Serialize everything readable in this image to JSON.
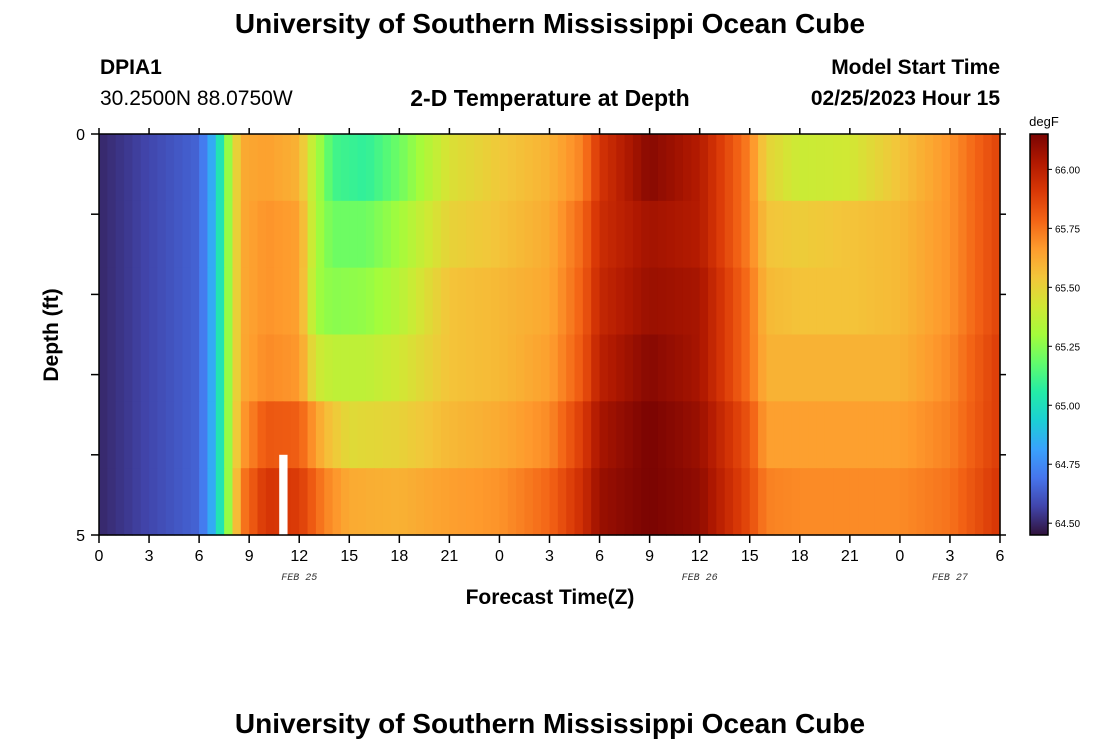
{
  "header": {
    "title": "University of Southern Mississippi Ocean Cube",
    "station_id": "DPIA1",
    "station_coords": "30.2500N  88.0750W",
    "model_start_label": "Model Start Time",
    "model_start_value": "02/25/2023 Hour 15"
  },
  "footer": {
    "title": "University of Southern Mississippi Ocean Cube"
  },
  "chart_data": {
    "type": "heatmap",
    "title": "2-D Temperature at Depth",
    "xlabel": "Forecast Time(Z)",
    "ylabel": "Depth (ft)",
    "x_tick_labels": [
      "0",
      "3",
      "6",
      "9",
      "12",
      "15",
      "18",
      "21",
      "0",
      "3",
      "6",
      "9",
      "12",
      "15",
      "18",
      "21",
      "0",
      "3",
      "6"
    ],
    "date_labels": [
      {
        "label": "FEB 25",
        "tick_index": 4
      },
      {
        "label": "FEB 26",
        "tick_index": 12
      },
      {
        "label": "FEB 27",
        "tick_index": 17
      }
    ],
    "y_tick_labels": [
      "0",
      "5"
    ],
    "ylim": [
      0,
      5
    ],
    "colorbar": {
      "unit": "degF",
      "tick_labels": [
        "66.00",
        "65.75",
        "65.50",
        "65.25",
        "65.00",
        "64.75",
        "64.50"
      ],
      "tick_values": [
        66.0,
        65.75,
        65.5,
        65.25,
        65.0,
        64.75,
        64.5
      ],
      "range": [
        64.45,
        66.15
      ],
      "colormap": [
        "#30123b",
        "#4145ab",
        "#4675ed",
        "#39a2fc",
        "#1bcfd4",
        "#24eca6",
        "#61fc6c",
        "#a4fc3b",
        "#d1e834",
        "#f3c63a",
        "#fe9b2d",
        "#f36315",
        "#d93806",
        "#b11901",
        "#7a0402"
      ]
    },
    "time_hours": [
      0,
      54
    ],
    "depth_layers": [
      {
        "name": "layer-1",
        "points": [
          [
            0,
            64.5
          ],
          [
            6,
            64.65
          ],
          [
            7,
            64.9
          ],
          [
            7.8,
            65.3
          ],
          [
            8.5,
            65.62
          ],
          [
            10,
            65.65
          ],
          [
            12,
            65.6
          ],
          [
            12.6,
            65.42
          ],
          [
            14,
            65.12
          ],
          [
            16,
            65.08
          ],
          [
            18,
            65.2
          ],
          [
            21,
            65.45
          ],
          [
            24,
            65.53
          ],
          [
            27,
            65.6
          ],
          [
            29,
            65.72
          ],
          [
            30,
            65.92
          ],
          [
            33,
            66.12
          ],
          [
            36,
            66.02
          ],
          [
            39,
            65.72
          ],
          [
            40,
            65.5
          ],
          [
            42,
            65.4
          ],
          [
            45,
            65.42
          ],
          [
            48,
            65.55
          ],
          [
            51,
            65.68
          ],
          [
            54,
            65.88
          ]
        ]
      },
      {
        "name": "layer-2",
        "points": [
          [
            0,
            64.5
          ],
          [
            6,
            64.65
          ],
          [
            7,
            64.9
          ],
          [
            7.8,
            65.3
          ],
          [
            8.5,
            65.62
          ],
          [
            10,
            65.68
          ],
          [
            12,
            65.65
          ],
          [
            13,
            65.32
          ],
          [
            14,
            65.2
          ],
          [
            16,
            65.2
          ],
          [
            18,
            65.3
          ],
          [
            21,
            65.5
          ],
          [
            24,
            65.55
          ],
          [
            27,
            65.62
          ],
          [
            29,
            65.78
          ],
          [
            30,
            65.95
          ],
          [
            33,
            66.06
          ],
          [
            36,
            66.02
          ],
          [
            39,
            65.72
          ],
          [
            40,
            65.55
          ],
          [
            42,
            65.52
          ],
          [
            45,
            65.55
          ],
          [
            48,
            65.58
          ],
          [
            51,
            65.68
          ],
          [
            54,
            65.88
          ]
        ]
      },
      {
        "name": "layer-3",
        "points": [
          [
            0,
            64.5
          ],
          [
            6,
            64.65
          ],
          [
            7,
            64.9
          ],
          [
            7.8,
            65.3
          ],
          [
            8.5,
            65.62
          ],
          [
            10,
            65.68
          ],
          [
            12,
            65.65
          ],
          [
            13,
            65.3
          ],
          [
            14,
            65.25
          ],
          [
            16,
            65.27
          ],
          [
            18,
            65.35
          ],
          [
            21,
            65.55
          ],
          [
            24,
            65.58
          ],
          [
            27,
            65.63
          ],
          [
            29,
            65.8
          ],
          [
            30,
            65.97
          ],
          [
            33,
            66.08
          ],
          [
            36,
            66.05
          ],
          [
            39,
            65.75
          ],
          [
            40,
            65.58
          ],
          [
            42,
            65.55
          ],
          [
            45,
            65.55
          ],
          [
            48,
            65.58
          ],
          [
            51,
            65.68
          ],
          [
            54,
            65.88
          ]
        ]
      },
      {
        "name": "layer-4",
        "points": [
          [
            0,
            64.5
          ],
          [
            6,
            64.65
          ],
          [
            7,
            64.9
          ],
          [
            7.8,
            65.3
          ],
          [
            8.5,
            65.62
          ],
          [
            10,
            65.7
          ],
          [
            12,
            65.67
          ],
          [
            13,
            65.42
          ],
          [
            14,
            65.37
          ],
          [
            16,
            65.37
          ],
          [
            18,
            65.42
          ],
          [
            21,
            65.55
          ],
          [
            24,
            65.58
          ],
          [
            27,
            65.65
          ],
          [
            29,
            65.82
          ],
          [
            30,
            66.0
          ],
          [
            33,
            66.12
          ],
          [
            36,
            66.05
          ],
          [
            39,
            65.75
          ],
          [
            40,
            65.6
          ],
          [
            42,
            65.6
          ],
          [
            45,
            65.6
          ],
          [
            48,
            65.6
          ],
          [
            51,
            65.7
          ],
          [
            54,
            65.9
          ]
        ]
      },
      {
        "name": "layer-5",
        "points": [
          [
            0,
            64.5
          ],
          [
            6,
            64.65
          ],
          [
            7,
            64.9
          ],
          [
            7.8,
            65.3
          ],
          [
            8.5,
            65.65
          ],
          [
            10,
            65.82
          ],
          [
            12,
            65.8
          ],
          [
            13.5,
            65.58
          ],
          [
            15,
            65.47
          ],
          [
            18,
            65.5
          ],
          [
            21,
            65.58
          ],
          [
            24,
            65.62
          ],
          [
            27,
            65.7
          ],
          [
            29,
            65.9
          ],
          [
            30,
            66.05
          ],
          [
            33,
            66.15
          ],
          [
            36,
            66.08
          ],
          [
            39,
            65.82
          ],
          [
            40,
            65.65
          ],
          [
            42,
            65.65
          ],
          [
            45,
            65.65
          ],
          [
            48,
            65.65
          ],
          [
            51,
            65.72
          ],
          [
            54,
            65.9
          ]
        ]
      },
      {
        "name": "layer-6",
        "points": [
          [
            0,
            64.5
          ],
          [
            6,
            64.65
          ],
          [
            7,
            64.9
          ],
          [
            7.8,
            65.3
          ],
          [
            8.5,
            65.72
          ],
          [
            10,
            65.92
          ],
          [
            12,
            65.9
          ],
          [
            13.5,
            65.72
          ],
          [
            15,
            65.62
          ],
          [
            18,
            65.6
          ],
          [
            21,
            65.65
          ],
          [
            24,
            65.68
          ],
          [
            27,
            65.78
          ],
          [
            29,
            65.95
          ],
          [
            30,
            66.08
          ],
          [
            33,
            66.15
          ],
          [
            36,
            66.1
          ],
          [
            39,
            65.85
          ],
          [
            40,
            65.72
          ],
          [
            42,
            65.7
          ],
          [
            45,
            65.7
          ],
          [
            48,
            65.7
          ],
          [
            51,
            65.75
          ],
          [
            54,
            65.92
          ]
        ]
      }
    ],
    "missing_marker": {
      "hour_start": 10.8,
      "hour_end": 11.3,
      "depth_start": 4.0,
      "depth_end": 5.0
    }
  }
}
